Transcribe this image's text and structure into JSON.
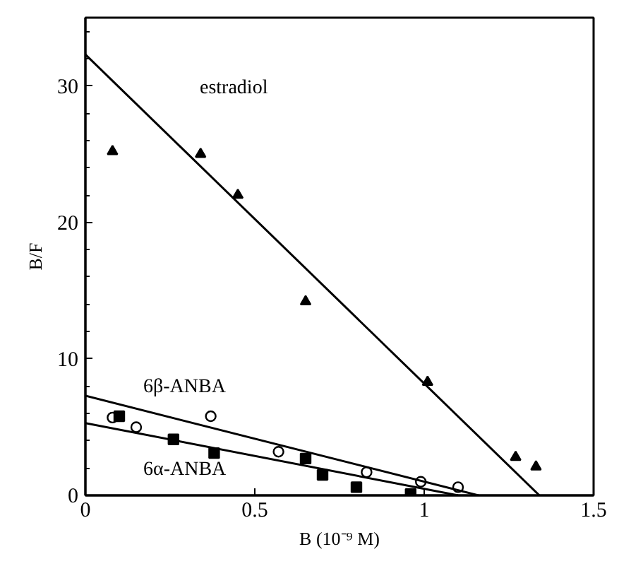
{
  "chart_data": {
    "type": "scatter",
    "xlabel": "B (10⁻⁹ M)",
    "ylabel": "B/F",
    "xlim": [
      0,
      1.5
    ],
    "ylim": [
      0,
      35
    ],
    "xticks": [
      0,
      0.5,
      1,
      1.5
    ],
    "yticks": [
      0,
      10,
      20,
      30
    ],
    "grid": false,
    "series": [
      {
        "marker": "triangle",
        "color": "#000000",
        "x": [
          0.08,
          0.34,
          0.45,
          0.65,
          1.01,
          1.27,
          1.33
        ],
        "values": [
          25.2,
          25,
          22,
          14.2,
          8.3,
          2.8,
          2.1
        ]
      },
      {
        "marker": "circle",
        "color": "#000000",
        "x": [
          0.08,
          0.15,
          0.37,
          0.57,
          0.83,
          0.99,
          1.1
        ],
        "values": [
          5.7,
          5,
          5.8,
          3.2,
          1.7,
          1,
          0.6
        ]
      },
      {
        "marker": "square",
        "color": "#000000",
        "x": [
          0.1,
          0.26,
          0.38,
          0.65,
          0.7,
          0.8,
          0.96
        ],
        "values": [
          5.8,
          4.1,
          3.1,
          2.7,
          1.5,
          0.6,
          0.1
        ]
      },
      {
        "type": "line",
        "name": "estradiol",
        "color": "#000000",
        "x": [
          0,
          1.34
        ],
        "values": [
          32.3,
          0
        ]
      },
      {
        "type": "line",
        "name": "6β-ANBA",
        "color": "#000000",
        "x": [
          0,
          1.16
        ],
        "values": [
          7.3,
          0
        ]
      },
      {
        "type": "line",
        "name": "6α-ANBA",
        "color": "#000000",
        "x": [
          0,
          1.1
        ],
        "values": [
          5.3,
          0
        ]
      }
    ]
  }
}
